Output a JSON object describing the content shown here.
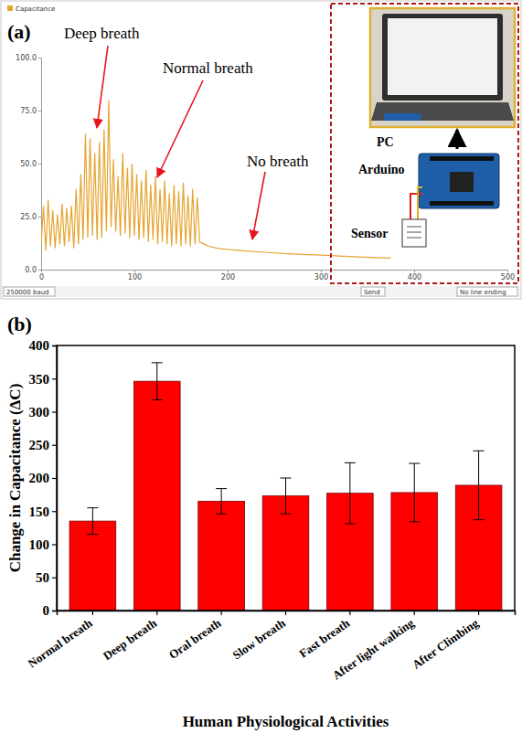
{
  "chart_data": [
    {
      "type": "line",
      "panel_label": "(a)",
      "x": [
        0,
        2.5,
        5,
        7.5,
        10,
        12.5,
        15,
        17.5,
        20,
        22.5,
        25,
        27.5,
        30,
        32.5,
        35,
        37.5,
        40,
        42.5,
        45,
        47.5,
        50,
        52.5,
        55,
        57.5,
        60,
        62.5,
        65,
        67.5,
        70,
        72.5,
        75,
        77.5,
        80,
        82.5,
        85,
        87.5,
        90,
        92.5,
        95,
        97.5,
        100,
        102.5,
        105,
        107.5,
        110,
        112.5,
        115,
        117.5,
        120,
        122.5,
        125,
        127.5,
        130,
        132.5,
        135,
        137.5,
        140,
        142.5,
        145,
        147.5,
        150,
        152.5,
        155,
        157.5,
        160,
        162.5,
        165,
        167.5,
        170,
        175,
        180,
        190,
        200,
        220,
        240,
        260,
        280,
        300,
        320,
        340,
        360,
        375
      ],
      "series": [
        {
          "name": "Capacitance",
          "color": "#e6a532",
          "values": [
            12,
            30,
            9,
            33,
            11,
            28,
            10,
            26,
            12,
            31,
            11,
            29,
            13,
            30,
            10,
            38,
            12,
            45,
            14,
            64,
            15,
            62,
            16,
            55,
            14,
            60,
            15,
            66,
            18,
            80,
            20,
            52,
            18,
            44,
            16,
            55,
            17,
            48,
            15,
            50,
            16,
            45,
            14,
            42,
            15,
            47,
            13,
            40,
            14,
            44,
            12,
            38,
            13,
            42,
            12,
            36,
            11,
            40,
            12,
            37,
            11,
            41,
            12,
            35,
            11,
            38,
            12,
            34,
            13,
            12,
            11,
            10,
            9.5,
            8.8,
            8.2,
            7.6,
            7.2,
            6.8,
            6.4,
            6,
            5.7,
            5.4
          ]
        }
      ],
      "xlim": [
        0,
        500
      ],
      "ylim": [
        0,
        100
      ],
      "xticks": [
        0,
        100,
        200,
        300,
        400,
        500
      ],
      "yticks": [
        {
          "value": 0,
          "label": "0.0"
        },
        {
          "value": 25,
          "label": "25.0"
        },
        {
          "value": 50,
          "label": "50.0"
        },
        {
          "value": 75,
          "label": "75.0"
        },
        {
          "value": 100,
          "label": "100.0"
        }
      ],
      "legend": "top-left",
      "annotations": [
        "Deep breath",
        "Normal breath",
        "No breath"
      ],
      "inset_labels": [
        "PC",
        "Arduino",
        "Sensor"
      ],
      "controls": [
        "250000 baud",
        "Send",
        "No line ending"
      ]
    },
    {
      "type": "bar",
      "panel_label": "(b)",
      "categories": [
        "Normal breath",
        "Deep breath",
        "Oral breath",
        "Slow breath",
        "Fast breath",
        "After light walking",
        "After Climbing"
      ],
      "values": [
        135,
        346,
        165,
        173,
        177,
        178,
        189
      ],
      "errors": [
        20,
        28,
        19,
        27,
        46,
        44,
        52
      ],
      "color": "#ff0000",
      "xlabel": "Human Physiological Activities",
      "ylabel": "Change in Capacitance (ΔC)",
      "ylim": [
        0,
        400
      ],
      "yticks": [
        0,
        50,
        100,
        150,
        200,
        250,
        300,
        350,
        400
      ]
    }
  ]
}
